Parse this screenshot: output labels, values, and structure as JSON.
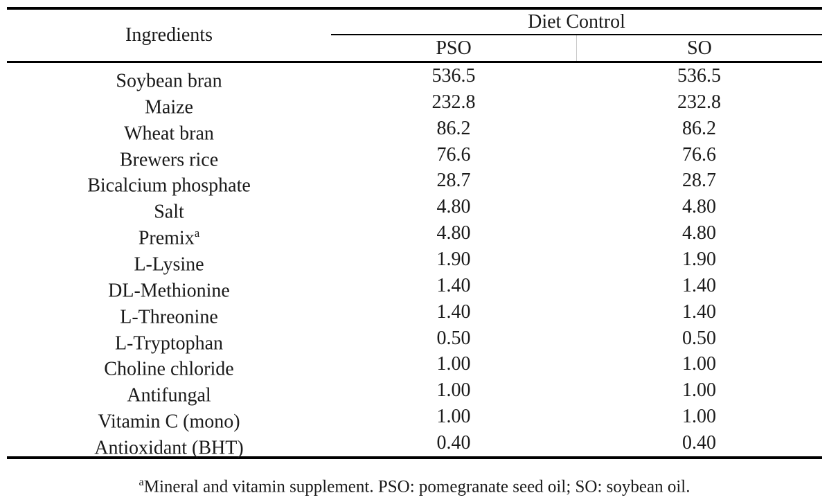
{
  "table": {
    "col1_header": "Ingredients",
    "group_header": "Diet Control",
    "sub_headers": [
      "PSO",
      "SO"
    ],
    "rows": [
      {
        "ingredient": "Soybean bran",
        "pso": "536.5",
        "so": "536.5"
      },
      {
        "ingredient": "Maize",
        "pso": "232.8",
        "so": "232.8"
      },
      {
        "ingredient": "Wheat bran",
        "pso": "86.2",
        "so": "86.2"
      },
      {
        "ingredient": "Brewers rice",
        "pso": "76.6",
        "so": "76.6"
      },
      {
        "ingredient": "Bicalcium phosphate",
        "pso": "28.7",
        "so": "28.7"
      },
      {
        "ingredient": "Salt",
        "pso": "4.80",
        "so": "4.80"
      },
      {
        "ingredient": "Premix",
        "sup": "a",
        "pso": "4.80",
        "so": "4.80"
      },
      {
        "ingredient": "L-Lysine",
        "pso": "1.90",
        "so": "1.90"
      },
      {
        "ingredient": "DL-Methionine",
        "pso": "1.40",
        "so": "1.40"
      },
      {
        "ingredient": "L-Threonine",
        "pso": "1.40",
        "so": "1.40"
      },
      {
        "ingredient": "L-Tryptophan",
        "pso": "0.50",
        "so": "0.50"
      },
      {
        "ingredient": "Choline chloride",
        "pso": "1.00",
        "so": "1.00"
      },
      {
        "ingredient": "Antifungal",
        "pso": "1.00",
        "so": "1.00"
      },
      {
        "ingredient": "Vitamin C (mono)",
        "pso": "1.00",
        "so": "1.00"
      },
      {
        "ingredient": "Antioxidant (BHT)",
        "pso": "0.40",
        "so": "0.40"
      }
    ],
    "footnote_sup": "a",
    "footnote_text": "Mineral and vitamin supplement. PSO: pomegranate seed oil; SO: soybean oil."
  },
  "colors": {
    "text": "#1a1a1a",
    "rule": "#000000",
    "background": "#ffffff"
  }
}
